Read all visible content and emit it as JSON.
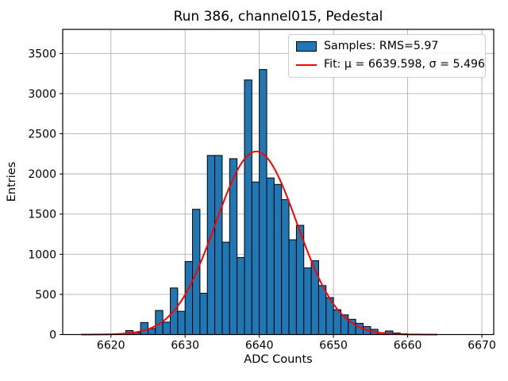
{
  "title": "Run 386, channel015, Pedestal",
  "chart_data": {
    "type": "bar",
    "subtype": "histogram",
    "title": "Run 386, channel015, Pedestal",
    "xlabel": "ADC Counts",
    "ylabel": "Entries",
    "xlim": [
      6613.5,
      6671.6
    ],
    "ylim": [
      0,
      3800
    ],
    "x_ticks": [
      6620,
      6630,
      6640,
      6650,
      6660,
      6670
    ],
    "y_ticks": [
      0,
      500,
      1000,
      1500,
      2000,
      2500,
      3000,
      3500
    ],
    "grid": true,
    "legend_position": "upper right",
    "bin_width": 1,
    "bin_start": 6621,
    "bins": [
      10,
      50,
      25,
      150,
      75,
      300,
      155,
      580,
      290,
      910,
      1560,
      515,
      2230,
      2230,
      1150,
      2190,
      960,
      3170,
      1900,
      3300,
      1950,
      1870,
      1680,
      1180,
      1360,
      830,
      920,
      610,
      460,
      310,
      245,
      190,
      140,
      100,
      65,
      25,
      45,
      20,
      10
    ],
    "fit": {
      "type": "gaussian",
      "mu": 6639.598,
      "sigma": 5.496,
      "amplitude": 2280,
      "x_range": [
        6616,
        6664
      ]
    },
    "legend": {
      "entries": [
        {
          "label": "Samples: RMS=5.97",
          "swatch": "patch",
          "color": "#1f77b4"
        },
        {
          "label": "Fit: μ = 6639.598, σ = 5.496",
          "swatch": "line",
          "color": "#ff0000"
        }
      ]
    },
    "colors": {
      "bar_fill": "#1f77b4",
      "bar_edge": "#000000",
      "fit_line": "#ff0000",
      "grid": "#b0b0b0",
      "spine": "#000000",
      "background": "#ffffff",
      "text": "#000000"
    }
  }
}
